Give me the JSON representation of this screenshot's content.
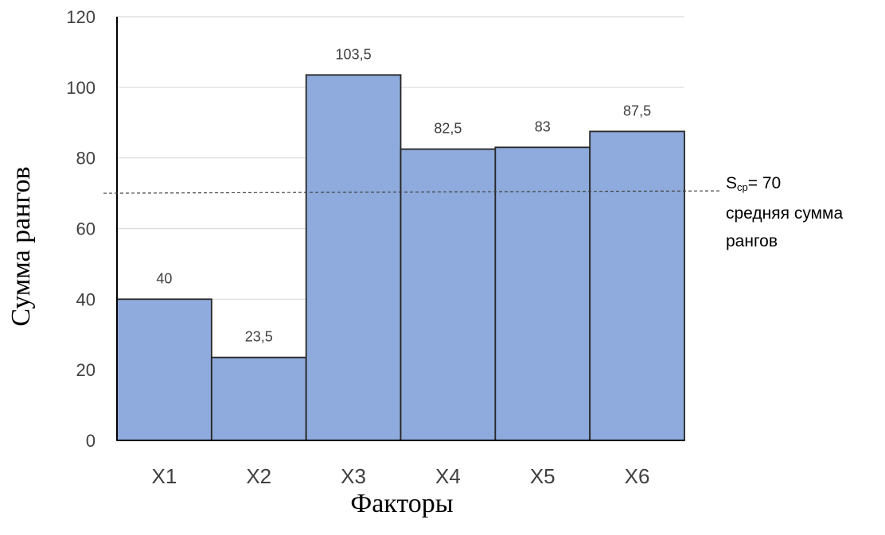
{
  "chart_data": {
    "type": "bar",
    "xlabel": "Факторы",
    "ylabel": "Сумма рангов",
    "ylim": [
      0,
      120
    ],
    "yticks": [
      0,
      20,
      40,
      60,
      80,
      100,
      120
    ],
    "grid": true,
    "categories": [
      "X1",
      "X2",
      "X3",
      "X4",
      "X5",
      "X6"
    ],
    "values": [
      40,
      23.5,
      103.5,
      82.5,
      83,
      87.5
    ],
    "data_labels": [
      "40",
      "23,5",
      "103,5",
      "82,5",
      "83",
      "87,5"
    ],
    "bar_color": "#8faadc",
    "bar_edge_color": "#262626",
    "reference_line": {
      "value": 70,
      "style": "dashed",
      "label_symbol": "S",
      "label_subscript": "cp",
      "label_value": "= 70",
      "label_line2": "средняя сумма",
      "label_line3": "рангов"
    }
  }
}
